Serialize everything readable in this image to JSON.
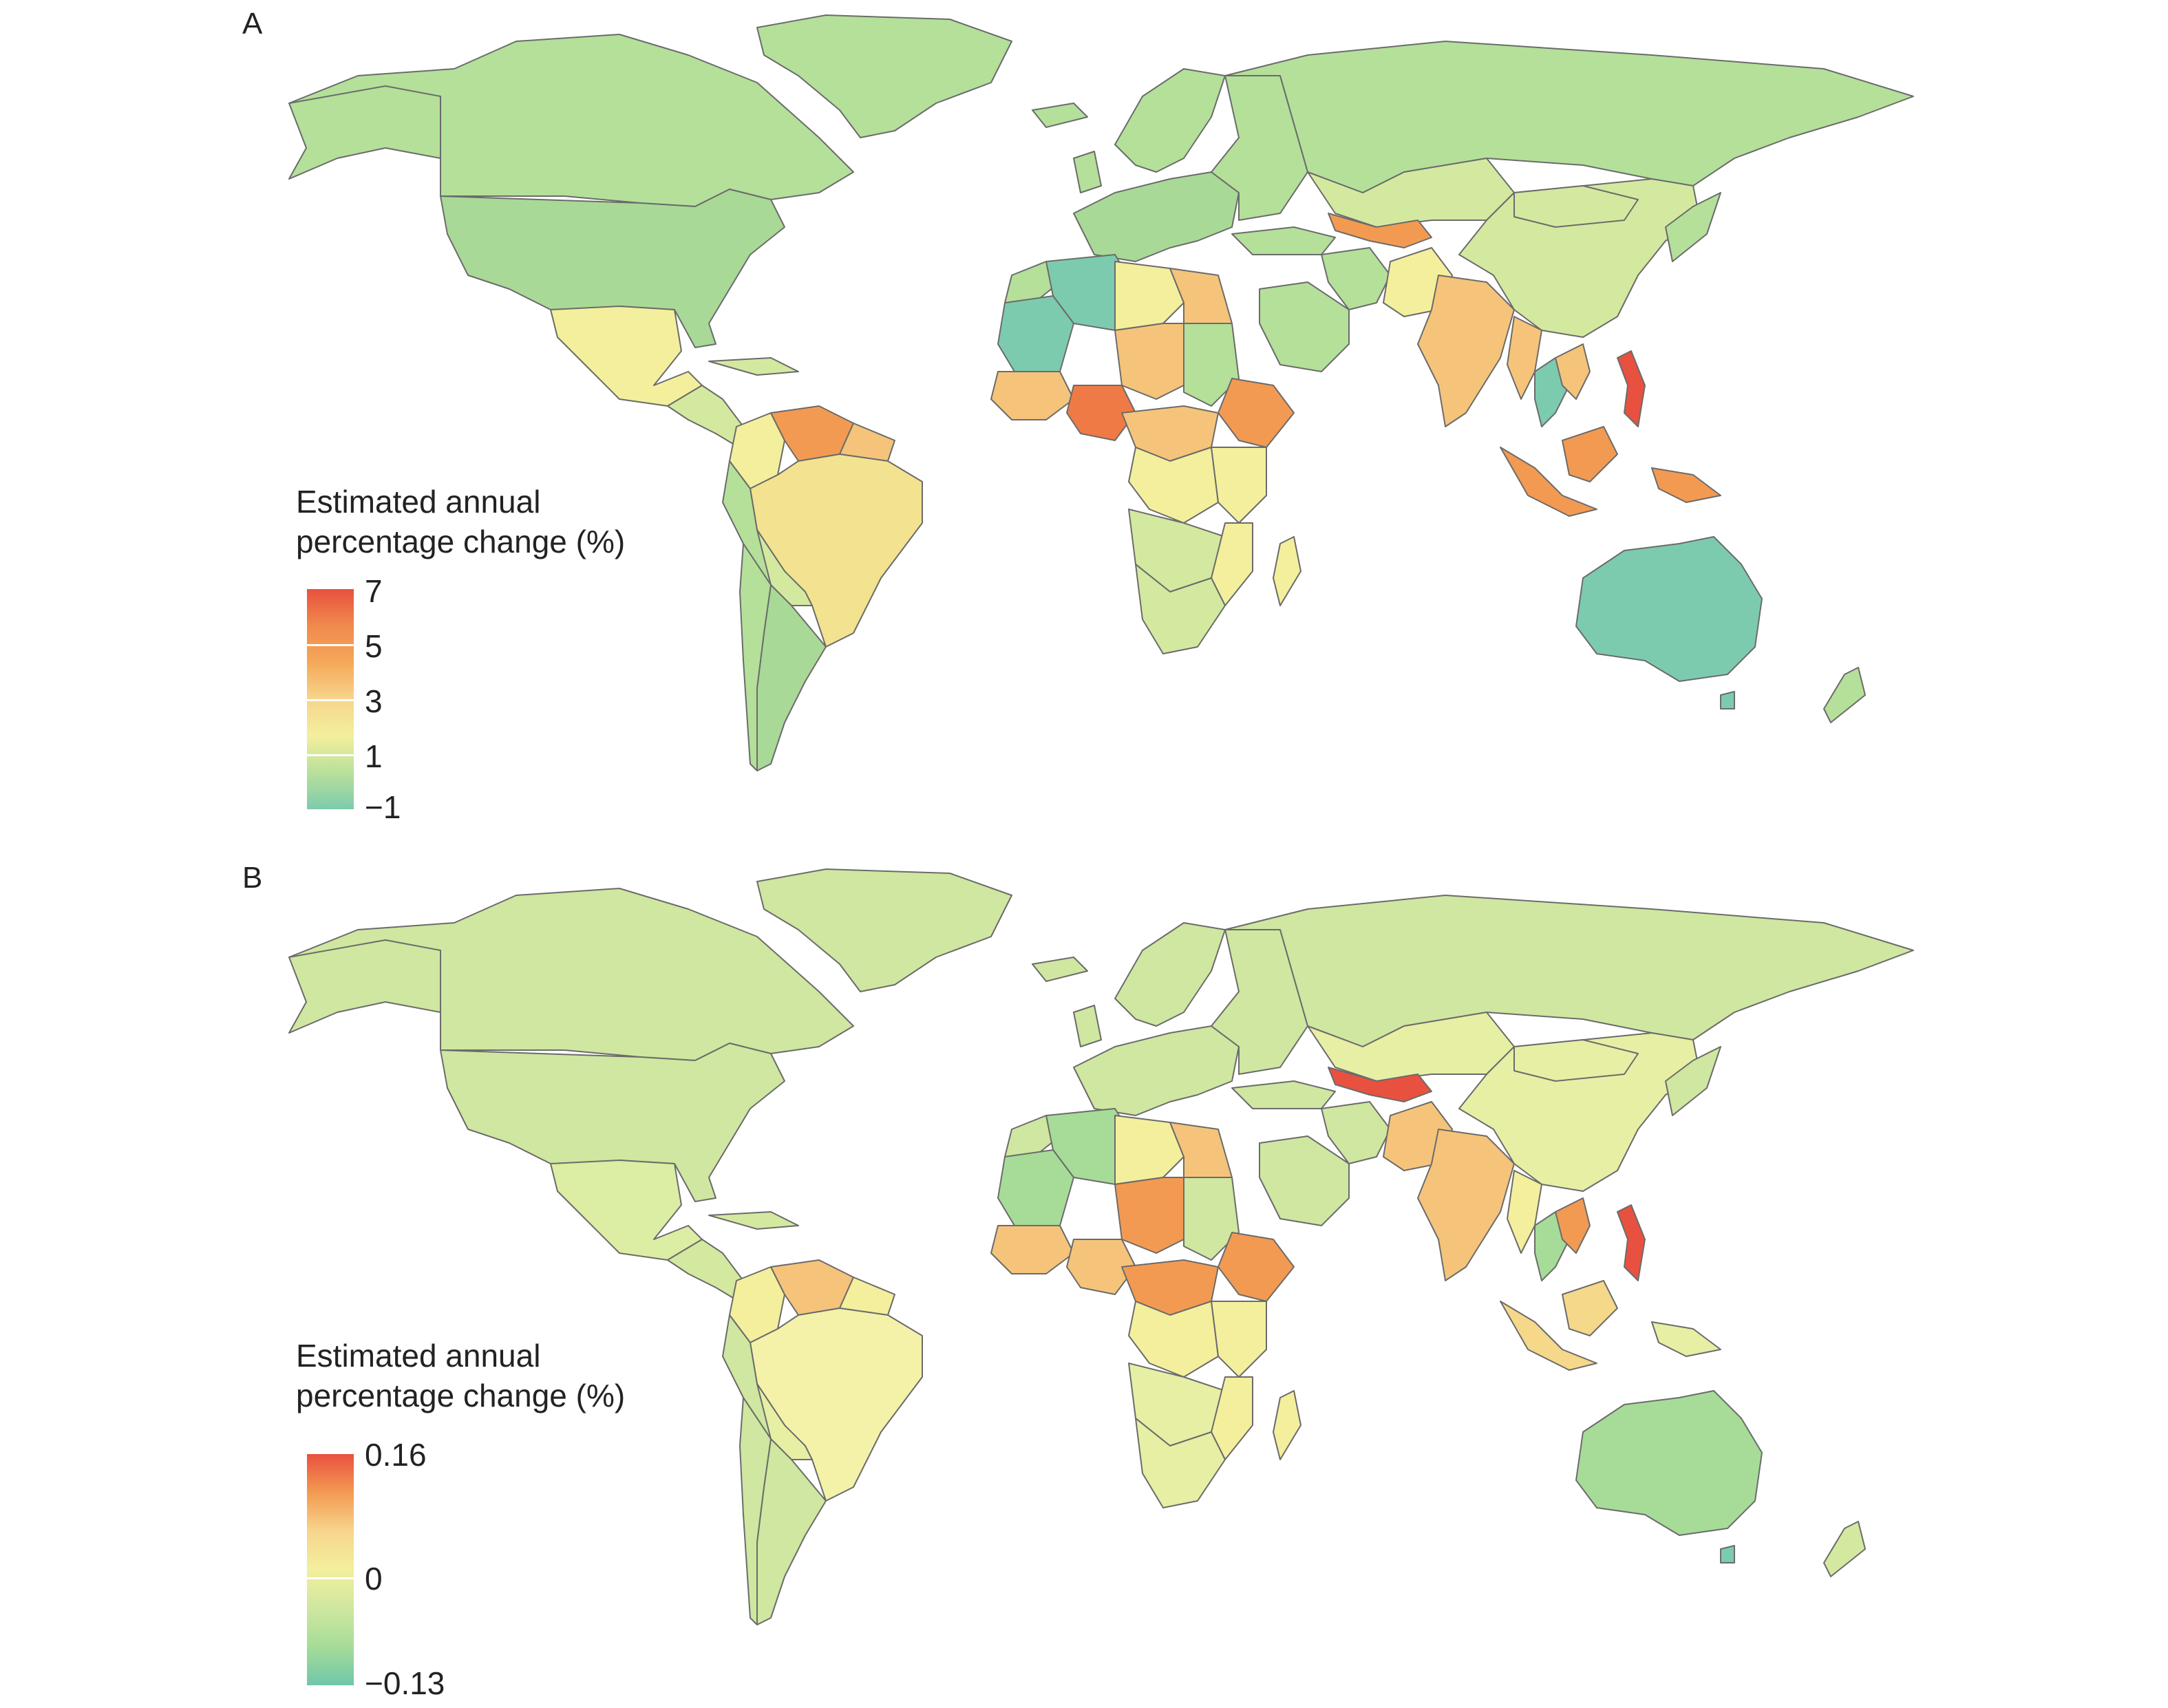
{
  "colors": {
    "red": "#e8513f",
    "orange": "#f39a52",
    "light_orange": "#f5c47a",
    "yellow": "#f3ef9d",
    "light_green": "#d4e9a0",
    "green": "#b4e09a",
    "teal": "#7dcbae",
    "border": "#6b6b6b"
  },
  "panels": [
    {
      "label": "A",
      "legend": {
        "title_line1": "Estimated annual",
        "title_line2": "percentage change (%)",
        "ticks": [
          "7",
          "5",
          "3",
          "1",
          "−1"
        ],
        "gradient": [
          "#e8513f",
          "#f08a4c",
          "#f5a85a",
          "#f7d58c",
          "#f3ef9d",
          "#b9e09a",
          "#7dcbae"
        ]
      }
    },
    {
      "label": "B",
      "legend": {
        "title_line1": "Estimated annual",
        "title_line2": "percentage change (%)",
        "ticks": [
          "0.16",
          "0",
          "−0.13"
        ],
        "gradient": [
          "#e8513f",
          "#f39a52",
          "#f7d58c",
          "#f3ef9d",
          "#cfe7a0",
          "#a6dc98",
          "#6fc7aa"
        ]
      }
    }
  ]
}
